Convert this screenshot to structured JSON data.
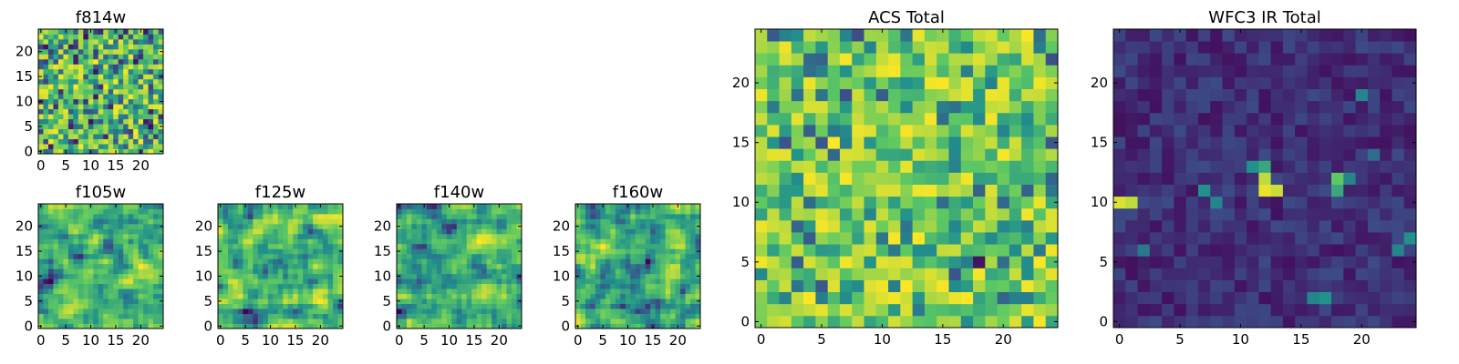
{
  "figure": {
    "background": "#ffffff"
  },
  "colormap": {
    "name": "viridis",
    "stops": [
      "#440154",
      "#3b528b",
      "#21918c",
      "#5ec962",
      "#fde725"
    ]
  },
  "chart_data": [
    {
      "id": "f814w",
      "type": "heatmap",
      "title": "f814w",
      "grid": [
        25,
        25
      ],
      "xticks": [
        0,
        5,
        10,
        15,
        20
      ],
      "yticks": [
        0,
        5,
        10,
        15,
        20
      ],
      "xlim": [
        -0.5,
        24.5
      ],
      "ylim": [
        -0.5,
        24.5
      ],
      "color_range": [
        0,
        1
      ],
      "seed": 814,
      "style": "noise"
    },
    {
      "id": "f105w",
      "type": "heatmap",
      "title": "f105w",
      "grid": [
        25,
        25
      ],
      "xticks": [
        0,
        5,
        10,
        15,
        20
      ],
      "yticks": [
        0,
        5,
        10,
        15,
        20
      ],
      "xlim": [
        -0.5,
        24.5
      ],
      "ylim": [
        -0.5,
        24.5
      ],
      "color_range": [
        0,
        1
      ],
      "seed": 105,
      "style": "smooth"
    },
    {
      "id": "f125w",
      "type": "heatmap",
      "title": "f125w",
      "grid": [
        25,
        25
      ],
      "xticks": [
        0,
        5,
        10,
        15,
        20
      ],
      "yticks": [
        0,
        5,
        10,
        15,
        20
      ],
      "xlim": [
        -0.5,
        24.5
      ],
      "ylim": [
        -0.5,
        24.5
      ],
      "color_range": [
        0,
        1
      ],
      "seed": 125,
      "style": "smooth"
    },
    {
      "id": "f140w",
      "type": "heatmap",
      "title": "f140w",
      "grid": [
        25,
        25
      ],
      "xticks": [
        0,
        5,
        10,
        15,
        20
      ],
      "yticks": [
        0,
        5,
        10,
        15,
        20
      ],
      "xlim": [
        -0.5,
        24.5
      ],
      "ylim": [
        -0.5,
        24.5
      ],
      "color_range": [
        0,
        1
      ],
      "seed": 140,
      "style": "smooth"
    },
    {
      "id": "f160w",
      "type": "heatmap",
      "title": "f160w",
      "grid": [
        25,
        25
      ],
      "xticks": [
        0,
        5,
        10,
        15,
        20
      ],
      "yticks": [
        0,
        5,
        10,
        15,
        20
      ],
      "xlim": [
        -0.5,
        24.5
      ],
      "ylim": [
        -0.5,
        24.5
      ],
      "color_range": [
        0,
        1
      ],
      "seed": 160,
      "style": "smooth"
    },
    {
      "id": "acs-total",
      "type": "heatmap",
      "title": "ACS Total",
      "grid": [
        25,
        25
      ],
      "xticks": [
        0,
        5,
        10,
        15,
        20
      ],
      "yticks": [
        0,
        5,
        10,
        15,
        20
      ],
      "xlim": [
        -0.5,
        24.5
      ],
      "ylim": [
        -0.5,
        24.5
      ],
      "color_range": [
        0,
        1
      ],
      "seed": 777,
      "style": "noise-bright"
    },
    {
      "id": "wfc3-ir-total",
      "type": "heatmap",
      "title": "WFC3 IR Total",
      "grid": [
        25,
        25
      ],
      "xticks": [
        0,
        5,
        10,
        15,
        20
      ],
      "yticks": [
        0,
        5,
        10,
        15,
        20
      ],
      "xlim": [
        -0.5,
        24.5
      ],
      "ylim": [
        -0.5,
        24.5
      ],
      "color_range": [
        0,
        1
      ],
      "seed": 333,
      "style": "dark-sources",
      "bright_sources": [
        {
          "x": 0,
          "y": 10,
          "value": 0.95
        },
        {
          "x": 1,
          "y": 10,
          "value": 0.9
        },
        {
          "x": 12,
          "y": 11,
          "value": 0.97
        },
        {
          "x": 13,
          "y": 11,
          "value": 0.92
        },
        {
          "x": 12,
          "y": 12,
          "value": 0.9
        },
        {
          "x": 12,
          "y": 13,
          "value": 0.6
        },
        {
          "x": 11,
          "y": 13,
          "value": 0.5
        },
        {
          "x": 7,
          "y": 11,
          "value": 0.5
        },
        {
          "x": 8,
          "y": 10,
          "value": 0.45
        },
        {
          "x": 18,
          "y": 12,
          "value": 0.75
        },
        {
          "x": 18,
          "y": 11,
          "value": 0.6
        },
        {
          "x": 19,
          "y": 12,
          "value": 0.45
        },
        {
          "x": 20,
          "y": 19,
          "value": 0.45
        },
        {
          "x": 24,
          "y": 7,
          "value": 0.5
        },
        {
          "x": 23,
          "y": 6,
          "value": 0.45
        },
        {
          "x": 16,
          "y": 2,
          "value": 0.45
        },
        {
          "x": 17,
          "y": 2,
          "value": 0.5
        },
        {
          "x": 2,
          "y": 6,
          "value": 0.4
        },
        {
          "x": 21,
          "y": 14,
          "value": 0.35
        }
      ]
    }
  ]
}
